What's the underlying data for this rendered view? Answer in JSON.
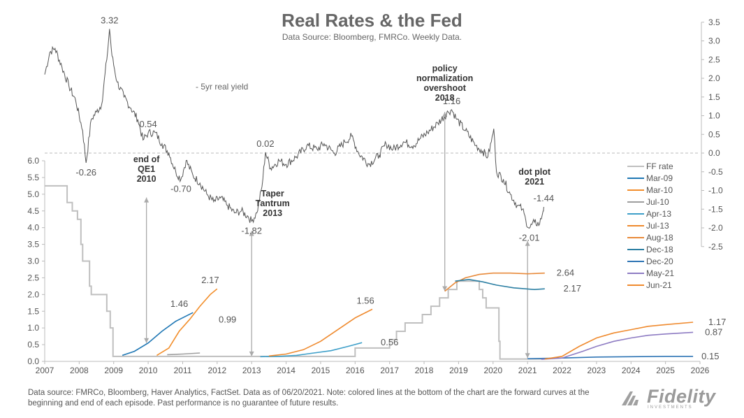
{
  "title": "Real Rates & the Fed",
  "subtitle": "Data Source: Bloomberg, FMRCo. Weekly Data.",
  "footnote": "Data source: FMRCo, Bloomberg, Haver Analytics, FactSet. Data as of 06/20/2021. Note: colored lines at the bottom of the chart are the forward curves at the beginning and end of each episode. Past performance is no guarantee of future results.",
  "brand": "Fidelity",
  "brand_sub": "INVESTMENTS",
  "chart_data": {
    "type": "line",
    "x_ticks": [
      "2007",
      "2008",
      "2009",
      "2010",
      "2011",
      "2012",
      "2013",
      "2014",
      "2015",
      "2016",
      "2017",
      "2018",
      "2019",
      "2020",
      "2021",
      "2022",
      "2023",
      "2024",
      "2025",
      "2026"
    ],
    "xlim": [
      2007,
      2026
    ],
    "left_axis": {
      "ticks": [
        "0.0",
        "0.5",
        "1.0",
        "1.5",
        "2.0",
        "2.5",
        "3.0",
        "3.5",
        "4.0",
        "4.5",
        "5.0",
        "5.5",
        "6.0"
      ],
      "ylim": [
        0,
        6
      ]
    },
    "right_axis": {
      "ticks": [
        "3.5",
        "3.0",
        "2.5",
        "2.0",
        "1.5",
        "1.0",
        "0.5",
        "0.0",
        "-0.5",
        "-1.0",
        "-1.5",
        "-2.0",
        "-2.5"
      ],
      "ylim": [
        -2.5,
        3.5
      ]
    },
    "series": [
      {
        "name": "5yr real yield",
        "axis": "right",
        "color": "#555555",
        "points": [
          [
            2007.0,
            2.1
          ],
          [
            2007.15,
            2.7
          ],
          [
            2007.3,
            2.8
          ],
          [
            2007.5,
            2.3
          ],
          [
            2007.7,
            1.8
          ],
          [
            2007.9,
            1.4
          ],
          [
            2008.1,
            0.6
          ],
          [
            2008.2,
            -0.26
          ],
          [
            2008.35,
            0.9
          ],
          [
            2008.5,
            1.1
          ],
          [
            2008.65,
            1.3
          ],
          [
            2008.8,
            2.5
          ],
          [
            2008.88,
            3.32
          ],
          [
            2008.95,
            2.6
          ],
          [
            2009.1,
            1.9
          ],
          [
            2009.3,
            1.5
          ],
          [
            2009.5,
            1.2
          ],
          [
            2009.7,
            0.9
          ],
          [
            2009.85,
            0.35
          ],
          [
            2010.0,
            0.54
          ],
          [
            2010.2,
            0.55
          ],
          [
            2010.4,
            0.25
          ],
          [
            2010.6,
            0.0
          ],
          [
            2010.8,
            -0.5
          ],
          [
            2010.95,
            -0.7
          ],
          [
            2011.1,
            -0.2
          ],
          [
            2011.3,
            -0.6
          ],
          [
            2011.5,
            -0.8
          ],
          [
            2011.7,
            -1.1
          ],
          [
            2011.9,
            -1.3
          ],
          [
            2012.1,
            -1.2
          ],
          [
            2012.3,
            -1.4
          ],
          [
            2012.5,
            -1.6
          ],
          [
            2012.7,
            -1.55
          ],
          [
            2012.9,
            -1.7
          ],
          [
            2013.0,
            -1.82
          ],
          [
            2013.15,
            -1.6
          ],
          [
            2013.3,
            -0.9
          ],
          [
            2013.4,
            0.02
          ],
          [
            2013.55,
            -0.4
          ],
          [
            2013.8,
            -0.2
          ],
          [
            2014.0,
            -0.3
          ],
          [
            2014.3,
            -0.1
          ],
          [
            2014.6,
            0.2
          ],
          [
            2014.9,
            0.1
          ],
          [
            2015.1,
            0.25
          ],
          [
            2015.4,
            0.0
          ],
          [
            2015.7,
            0.3
          ],
          [
            2015.9,
            0.45
          ],
          [
            2016.1,
            0.0
          ],
          [
            2016.4,
            -0.3
          ],
          [
            2016.7,
            -0.05
          ],
          [
            2016.9,
            0.25
          ],
          [
            2017.1,
            0.1
          ],
          [
            2017.4,
            0.3
          ],
          [
            2017.7,
            0.2
          ],
          [
            2017.9,
            0.4
          ],
          [
            2018.1,
            0.55
          ],
          [
            2018.4,
            0.8
          ],
          [
            2018.7,
            1.1
          ],
          [
            2018.8,
            1.16
          ],
          [
            2018.95,
            0.9
          ],
          [
            2019.2,
            0.6
          ],
          [
            2019.5,
            0.2
          ],
          [
            2019.7,
            0.05
          ],
          [
            2019.85,
            -0.1
          ],
          [
            2019.95,
            0.3
          ],
          [
            2020.02,
            0.65
          ],
          [
            2020.1,
            -0.5
          ],
          [
            2020.3,
            -0.7
          ],
          [
            2020.5,
            -1.1
          ],
          [
            2020.7,
            -1.4
          ],
          [
            2020.85,
            -1.5
          ],
          [
            2020.95,
            -1.8
          ],
          [
            2021.05,
            -2.01
          ],
          [
            2021.2,
            -1.85
          ],
          [
            2021.35,
            -1.9
          ],
          [
            2021.45,
            -1.55
          ],
          [
            2021.47,
            -1.44
          ]
        ]
      },
      {
        "name": "FF rate",
        "axis": "left",
        "color": "#bfbfbf",
        "points": [
          [
            2007.0,
            5.25
          ],
          [
            2007.6,
            5.25
          ],
          [
            2007.65,
            4.75
          ],
          [
            2007.8,
            4.5
          ],
          [
            2007.95,
            4.25
          ],
          [
            2008.05,
            3.5
          ],
          [
            2008.1,
            3.0
          ],
          [
            2008.3,
            2.25
          ],
          [
            2008.35,
            2.0
          ],
          [
            2008.75,
            2.0
          ],
          [
            2008.8,
            1.5
          ],
          [
            2008.9,
            1.0
          ],
          [
            2008.98,
            0.15
          ],
          [
            2015.95,
            0.15
          ],
          [
            2016.0,
            0.4
          ],
          [
            2016.95,
            0.4
          ],
          [
            2017.0,
            0.65
          ],
          [
            2017.2,
            0.9
          ],
          [
            2017.45,
            1.15
          ],
          [
            2017.95,
            1.4
          ],
          [
            2018.2,
            1.65
          ],
          [
            2018.45,
            1.9
          ],
          [
            2018.7,
            2.15
          ],
          [
            2018.95,
            2.4
          ],
          [
            2019.55,
            2.4
          ],
          [
            2019.6,
            2.15
          ],
          [
            2019.7,
            1.9
          ],
          [
            2019.8,
            1.6
          ],
          [
            2020.15,
            1.6
          ],
          [
            2020.17,
            0.6
          ],
          [
            2020.2,
            0.07
          ],
          [
            2021.5,
            0.07
          ]
        ]
      },
      {
        "name": "Mar-09",
        "axis": "left",
        "color": "#1f77b4",
        "points": [
          [
            2009.25,
            0.18
          ],
          [
            2009.6,
            0.3
          ],
          [
            2010.0,
            0.55
          ],
          [
            2010.4,
            0.9
          ],
          [
            2010.8,
            1.2
          ],
          [
            2011.3,
            1.46
          ]
        ]
      },
      {
        "name": "Mar-10",
        "axis": "left",
        "color": "#f28e2b",
        "points": [
          [
            2010.25,
            0.18
          ],
          [
            2010.6,
            0.4
          ],
          [
            2010.9,
            0.9
          ],
          [
            2011.2,
            1.25
          ],
          [
            2011.5,
            1.65
          ],
          [
            2011.8,
            2.0
          ],
          [
            2012.0,
            2.17
          ]
        ]
      },
      {
        "name": "Jul-10",
        "axis": "left",
        "color": "#9e9e9e",
        "points": [
          [
            2010.55,
            0.2
          ],
          [
            2011.0,
            0.22
          ],
          [
            2011.5,
            0.25
          ]
        ]
      },
      {
        "name": "Apr-13",
        "axis": "left",
        "color": "#3d9fc9",
        "points": [
          [
            2013.25,
            0.14
          ],
          [
            2013.8,
            0.15
          ],
          [
            2014.3,
            0.18
          ],
          [
            2014.8,
            0.25
          ],
          [
            2015.3,
            0.32
          ],
          [
            2015.8,
            0.45
          ],
          [
            2016.2,
            0.56
          ]
        ]
      },
      {
        "name": "Jul-13",
        "axis": "left",
        "color": "#ef8a2e",
        "points": [
          [
            2013.5,
            0.16
          ],
          [
            2014.0,
            0.22
          ],
          [
            2014.5,
            0.35
          ],
          [
            2015.0,
            0.6
          ],
          [
            2015.5,
            0.95
          ],
          [
            2016.0,
            1.3
          ],
          [
            2016.5,
            1.56
          ]
        ]
      },
      {
        "name": "Aug-18",
        "axis": "left",
        "color": "#e88a3a",
        "points": [
          [
            2018.6,
            2.1
          ],
          [
            2018.9,
            2.35
          ],
          [
            2019.2,
            2.5
          ],
          [
            2019.6,
            2.6
          ],
          [
            2020.0,
            2.64
          ],
          [
            2020.5,
            2.64
          ],
          [
            2021.0,
            2.62
          ],
          [
            2021.5,
            2.64
          ]
        ]
      },
      {
        "name": "Dec-18",
        "axis": "left",
        "color": "#2c7fa3",
        "points": [
          [
            2018.9,
            2.4
          ],
          [
            2019.3,
            2.45
          ],
          [
            2019.7,
            2.38
          ],
          [
            2020.1,
            2.28
          ],
          [
            2020.6,
            2.2
          ],
          [
            2021.2,
            2.15
          ],
          [
            2021.5,
            2.17
          ]
        ]
      },
      {
        "name": "Dec-20",
        "axis": "left",
        "color": "#2f75b5",
        "points": [
          [
            2021.0,
            0.08
          ],
          [
            2022.0,
            0.1
          ],
          [
            2023.0,
            0.13
          ],
          [
            2024.0,
            0.14
          ],
          [
            2025.0,
            0.15
          ],
          [
            2025.8,
            0.15
          ]
        ]
      },
      {
        "name": "May-21",
        "axis": "left",
        "color": "#8e7cc3",
        "points": [
          [
            2021.4,
            0.06
          ],
          [
            2022.0,
            0.1
          ],
          [
            2022.6,
            0.3
          ],
          [
            2023.0,
            0.45
          ],
          [
            2023.5,
            0.6
          ],
          [
            2024.0,
            0.7
          ],
          [
            2024.5,
            0.78
          ],
          [
            2025.0,
            0.82
          ],
          [
            2025.8,
            0.87
          ]
        ]
      },
      {
        "name": "Jun-21",
        "axis": "left",
        "color": "#ef8a2e",
        "points": [
          [
            2021.5,
            0.07
          ],
          [
            2022.0,
            0.15
          ],
          [
            2022.5,
            0.45
          ],
          [
            2023.0,
            0.7
          ],
          [
            2023.5,
            0.85
          ],
          [
            2024.0,
            0.95
          ],
          [
            2024.5,
            1.05
          ],
          [
            2025.0,
            1.1
          ],
          [
            2025.8,
            1.17
          ]
        ]
      }
    ],
    "legend": {
      "placement": "right",
      "items": [
        "FF rate",
        "Mar-09",
        "Mar-10",
        "Jul-10",
        "Apr-13",
        "Jul-13",
        "Aug-18",
        "Dec-18",
        "Dec-20",
        "May-21",
        "Jun-21"
      ],
      "colors": [
        "#bfbfbf",
        "#1f77b4",
        "#f28e2b",
        "#9e9e9e",
        "#3d9fc9",
        "#ef8a2e",
        "#e88a3a",
        "#2c7fa3",
        "#2f75b5",
        "#8e7cc3",
        "#ef8a2e"
      ]
    },
    "series_label": "- 5yr real yield",
    "annotations": [
      {
        "text": "3.32",
        "x": 2008.88,
        "y": 3.32,
        "axis": "right",
        "pos": "above"
      },
      {
        "text": "-0.26",
        "x": 2008.2,
        "y": -0.26,
        "axis": "right",
        "pos": "below"
      },
      {
        "text": "0.54",
        "x": 2010.0,
        "y": 0.54,
        "axis": "right",
        "pos": "above"
      },
      {
        "text": "-0.70",
        "x": 2010.95,
        "y": -0.7,
        "axis": "right",
        "pos": "below"
      },
      {
        "text": "-1.82",
        "x": 2013.0,
        "y": -1.82,
        "axis": "right",
        "pos": "below"
      },
      {
        "text": "0.02",
        "x": 2013.4,
        "y": 0.02,
        "axis": "right",
        "pos": "above"
      },
      {
        "text": "1.16",
        "x": 2018.8,
        "y": 1.16,
        "axis": "right",
        "pos": "above"
      },
      {
        "text": "-2.01",
        "x": 2021.05,
        "y": -2.01,
        "axis": "right",
        "pos": "below"
      },
      {
        "text": "-1.44",
        "x": 2021.47,
        "y": -1.44,
        "axis": "right",
        "pos": "above"
      },
      {
        "text": "1.46",
        "x": 2010.9,
        "y": 1.46,
        "axis": "left",
        "pos": "above"
      },
      {
        "text": "2.17",
        "x": 2011.8,
        "y": 2.17,
        "axis": "left",
        "pos": "above"
      },
      {
        "text": "0.99",
        "x": 2012.3,
        "y": 0.99,
        "axis": "left",
        "pos": "above"
      },
      {
        "text": "1.56",
        "x": 2016.3,
        "y": 1.56,
        "axis": "left",
        "pos": "above"
      },
      {
        "text": "0.56",
        "x": 2016.5,
        "y": 0.56,
        "axis": "left",
        "pos": "right"
      },
      {
        "text": "2.64",
        "x": 2021.6,
        "y": 2.64,
        "axis": "left",
        "pos": "right"
      },
      {
        "text": "2.17",
        "x": 2021.8,
        "y": 2.17,
        "axis": "left",
        "pos": "right"
      },
      {
        "text": "1.17",
        "x": 2026.0,
        "y": 1.17,
        "axis": "left",
        "pos": "right"
      },
      {
        "text": "0.87",
        "x": 2025.9,
        "y": 0.87,
        "axis": "left",
        "pos": "right"
      },
      {
        "text": "0.15",
        "x": 2025.8,
        "y": 0.15,
        "axis": "left",
        "pos": "right"
      }
    ],
    "events": [
      {
        "lines": [
          "end of",
          "QE1",
          "2010"
        ],
        "x": 2009.95
      },
      {
        "lines": [
          "Taper",
          "Tantrum",
          "2013"
        ],
        "x": 2013.0
      },
      {
        "lines": [
          "policy",
          "normalization",
          "overshoot",
          "2018"
        ],
        "x": 2018.6
      },
      {
        "lines": [
          "dot plot",
          "2021"
        ],
        "x": 2021.0
      }
    ]
  }
}
